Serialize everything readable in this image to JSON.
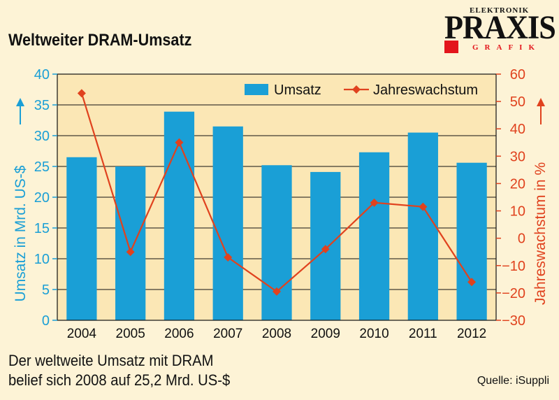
{
  "title": "Weltweiter DRAM-Umsatz",
  "logo": {
    "top": "ELEKTRONIK",
    "main": "PRAXIS",
    "sub": "GRAFIK"
  },
  "caption": [
    "Der weltweite Umsatz mit DRAM",
    "belief sich 2008 auf 25,2 Mrd. US-$"
  ],
  "source": "Quelle: iSuppli",
  "colors": {
    "bar": "#1a9fd6",
    "line": "#e0421e",
    "plot_bg": "#fbe7b5",
    "page_bg": "#fdf3d6"
  },
  "chart_data": {
    "type": "bar",
    "title": "Weltweiter DRAM-Umsatz",
    "categories": [
      "2004",
      "2005",
      "2006",
      "2007",
      "2008",
      "2009",
      "2010",
      "2011",
      "2012"
    ],
    "series": [
      {
        "name": "Umsatz",
        "type": "bar",
        "axis": "left",
        "values": [
          26.5,
          25.0,
          33.9,
          31.5,
          25.2,
          24.1,
          27.3,
          30.5,
          25.6
        ]
      },
      {
        "name": "Jahreswachstum",
        "type": "line",
        "axis": "right",
        "values": [
          53,
          -5,
          35,
          -7,
          -19.5,
          -4,
          13,
          11.5,
          -16
        ]
      }
    ],
    "y_left": {
      "label": "Umsatz in Mrd. US-$",
      "min": 0,
      "max": 40,
      "ticks": [
        "0",
        "5",
        "10",
        "15",
        "20",
        "25",
        "30",
        "35",
        "40"
      ]
    },
    "y_right": {
      "label": "Jahreswachstum in %",
      "min": -30,
      "max": 60,
      "ticks": [
        "−30",
        "−20",
        "−10",
        "0",
        "10",
        "20",
        "30",
        "40",
        "50",
        "60"
      ]
    },
    "grid": true,
    "legend": {
      "position": "top-right",
      "entries": [
        "Umsatz",
        "Jahreswachstum"
      ]
    }
  }
}
